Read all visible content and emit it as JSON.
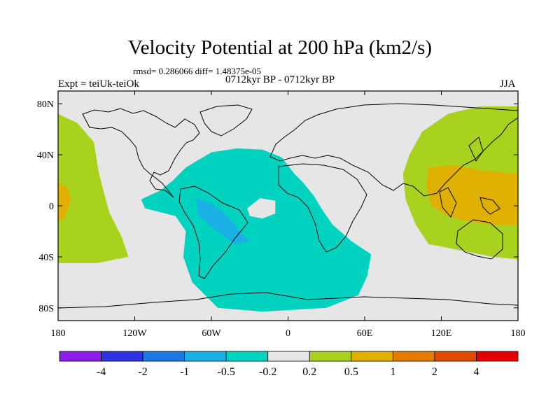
{
  "chart_data": {
    "type": "contour_map",
    "title": "Velocity Potential at 200 hPa (km2/s)",
    "stats": "rmsd= 0.286066 diff= 1.48375e-05",
    "experiment": "Expt = teiUk-teiOk",
    "subtitle": "0712kyr BP - 0712kyr BP",
    "season": "JJA",
    "x_axis": {
      "range": [
        -180,
        180
      ],
      "ticks": [
        {
          "value": -180,
          "label": "180"
        },
        {
          "value": -120,
          "label": "120W"
        },
        {
          "value": -60,
          "label": "60W"
        },
        {
          "value": 0,
          "label": "0"
        },
        {
          "value": 60,
          "label": "60E"
        },
        {
          "value": 120,
          "label": "120E"
        },
        {
          "value": 180,
          "label": "180"
        }
      ]
    },
    "y_axis": {
      "range": [
        -90,
        90
      ],
      "ticks": [
        {
          "value": 80,
          "label": "80N"
        },
        {
          "value": 40,
          "label": "40N"
        },
        {
          "value": 0,
          "label": "0"
        },
        {
          "value": -40,
          "label": "40S"
        },
        {
          "value": -80,
          "label": "80S"
        }
      ]
    },
    "colorbar": {
      "colors": [
        "#8a1ee6",
        "#2f30e0",
        "#1a78e0",
        "#1ab0e6",
        "#00d2c0",
        "#e6e6e6",
        "#a8d21e",
        "#e0b000",
        "#e67a00",
        "#e04a00",
        "#e00000"
      ],
      "labels": [
        "-4",
        "-2",
        "-1",
        "-0.5",
        "-0.2",
        "0.2",
        "0.5",
        "1",
        "2",
        "4"
      ]
    },
    "regions": [
      {
        "name": "atlantic-negative",
        "level": "-0.5 to -0.2",
        "color": "#00d2c0",
        "polygon": [
          [
            -90,
            20
          ],
          [
            -80,
            30
          ],
          [
            -60,
            42
          ],
          [
            -40,
            45
          ],
          [
            -20,
            44
          ],
          [
            -5,
            38
          ],
          [
            5,
            25
          ],
          [
            12,
            18
          ],
          [
            20,
            8
          ],
          [
            28,
            -5
          ],
          [
            35,
            -15
          ],
          [
            50,
            -28
          ],
          [
            65,
            -38
          ],
          [
            62,
            -55
          ],
          [
            55,
            -70
          ],
          [
            30,
            -80
          ],
          [
            -20,
            -83
          ],
          [
            -55,
            -80
          ],
          [
            -75,
            -60
          ],
          [
            -82,
            -40
          ],
          [
            -80,
            -20
          ],
          [
            -88,
            -8
          ],
          [
            -112,
            -2
          ],
          [
            -115,
            5
          ],
          [
            -100,
            12
          ]
        ]
      },
      {
        "name": "south-america-negative",
        "level": "-1 to -0.5",
        "color": "#1ab0e6",
        "polygon": [
          [
            -72,
            6
          ],
          [
            -60,
            2
          ],
          [
            -48,
            -8
          ],
          [
            -38,
            -20
          ],
          [
            -30,
            -28
          ],
          [
            -42,
            -30
          ],
          [
            -58,
            -18
          ],
          [
            -70,
            -8
          ]
        ]
      },
      {
        "name": "atlantic-neutral-hole",
        "level": "-0.2 to 0.2",
        "color": "#e6e6e6",
        "polygon": [
          [
            -32,
            -2
          ],
          [
            -22,
            6
          ],
          [
            -10,
            4
          ],
          [
            -10,
            -6
          ],
          [
            -20,
            -10
          ],
          [
            -30,
            -8
          ]
        ]
      },
      {
        "name": "west-pacific-positive",
        "level": "0.2 to 0.5",
        "color": "#a8d21e",
        "polygon": [
          [
            -180,
            72
          ],
          [
            -165,
            65
          ],
          [
            -152,
            50
          ],
          [
            -148,
            25
          ],
          [
            -140,
            -5
          ],
          [
            -130,
            -25
          ],
          [
            -125,
            -40
          ],
          [
            -150,
            -45
          ],
          [
            -180,
            -45
          ]
        ]
      },
      {
        "name": "west-pacific-core",
        "level": "0.5 to 1",
        "color": "#e0b000",
        "polygon": [
          [
            -180,
            18
          ],
          [
            -173,
            15
          ],
          [
            -170,
            5
          ],
          [
            -175,
            -10
          ],
          [
            -180,
            -12
          ]
        ]
      },
      {
        "name": "east-asia-positive",
        "level": "0.2 to 0.5",
        "color": "#a8d21e",
        "polygon": [
          [
            95,
            40
          ],
          [
            105,
            58
          ],
          [
            125,
            72
          ],
          [
            150,
            78
          ],
          [
            180,
            78
          ],
          [
            180,
            -42
          ],
          [
            160,
            -40
          ],
          [
            135,
            -35
          ],
          [
            110,
            -30
          ],
          [
            100,
            -15
          ],
          [
            92,
            5
          ],
          [
            90,
            25
          ]
        ]
      },
      {
        "name": "east-asia-core",
        "level": "0.5 to 1",
        "color": "#e0b000",
        "polygon": [
          [
            110,
            30
          ],
          [
            130,
            32
          ],
          [
            150,
            28
          ],
          [
            180,
            25
          ],
          [
            180,
            -15
          ],
          [
            160,
            -15
          ],
          [
            140,
            -12
          ],
          [
            125,
            -8
          ],
          [
            112,
            0
          ],
          [
            108,
            15
          ]
        ]
      }
    ]
  }
}
